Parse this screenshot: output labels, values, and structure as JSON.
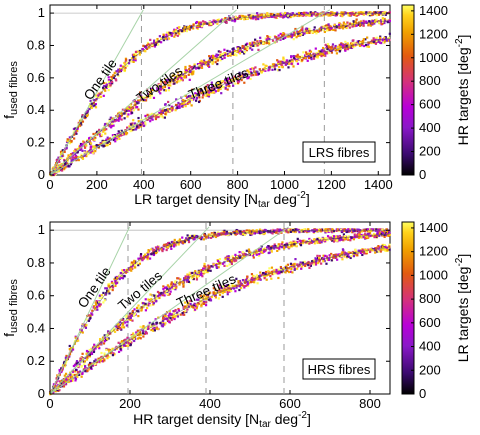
{
  "chart_data": [
    {
      "type": "scatter",
      "panel": "top",
      "xlabel_main": "LR target density [N",
      "xlabel_sub": "tar",
      "xlabel_unit": " deg",
      "xlabel_sup": "-2",
      "xlabel_close": "]",
      "ylabel_main": "f",
      "ylabel_sub": "used fibres",
      "xlim": [
        0,
        1450
      ],
      "ylim": [
        0,
        1.05
      ],
      "xticks": [
        0,
        200,
        400,
        600,
        800,
        1000,
        1200,
        1400
      ],
      "yticks": [
        0,
        0.2,
        0.4,
        0.6,
        0.8,
        1
      ],
      "box_label": "LRS fibres",
      "colorbar": {
        "label_main": "HR targets [deg",
        "label_sup": "-2",
        "label_close": "]",
        "range": [
          0,
          1450
        ],
        "ticks": [
          0,
          200,
          400,
          600,
          800,
          1000,
          1200,
          1400
        ]
      },
      "series": [
        {
          "label": "One tile",
          "tiles": 1,
          "scale": 390,
          "dashed_x": 390
        },
        {
          "label": "Two tiles",
          "tiles": 2,
          "scale": 780,
          "dashed_x": 780
        },
        {
          "label": "Three tiles",
          "tiles": 3,
          "scale": 1170,
          "dashed_x": 1170
        }
      ],
      "colors": [
        "#000000",
        "#3a0a6e",
        "#8a18c8",
        "#b800d8",
        "#d4327a",
        "#e25a10",
        "#f0a000",
        "#ffd21c",
        "#ffff60"
      ]
    },
    {
      "type": "scatter",
      "panel": "bottom",
      "xlabel_main": "HR target density [N",
      "xlabel_sub": "tar",
      "xlabel_unit": " deg",
      "xlabel_sup": "-2",
      "xlabel_close": "]",
      "ylabel_main": "f",
      "ylabel_sub": "used fibres",
      "xlim": [
        0,
        850
      ],
      "ylim": [
        0,
        1.05
      ],
      "xticks": [
        0,
        200,
        400,
        600,
        800
      ],
      "yticks": [
        0,
        0.2,
        0.4,
        0.6,
        0.8,
        1
      ],
      "box_label": "HRS fibres",
      "colorbar": {
        "label_main": "LR targets [deg",
        "label_sup": "-2",
        "label_close": "]",
        "range": [
          0,
          1450
        ],
        "ticks": [
          0,
          200,
          400,
          600,
          800,
          1000,
          1200,
          1400
        ]
      },
      "series": [
        {
          "label": "One tile",
          "tiles": 1,
          "scale": 195,
          "dashed_x": 195
        },
        {
          "label": "Two tiles",
          "tiles": 2,
          "scale": 390,
          "dashed_x": 390
        },
        {
          "label": "Three tiles",
          "tiles": 3,
          "scale": 585,
          "dashed_x": 585
        }
      ],
      "colors": [
        "#000000",
        "#3a0a6e",
        "#8a18c8",
        "#b800d8",
        "#d4327a",
        "#e25a10",
        "#f0a000",
        "#ffd21c",
        "#ffff60"
      ]
    }
  ]
}
